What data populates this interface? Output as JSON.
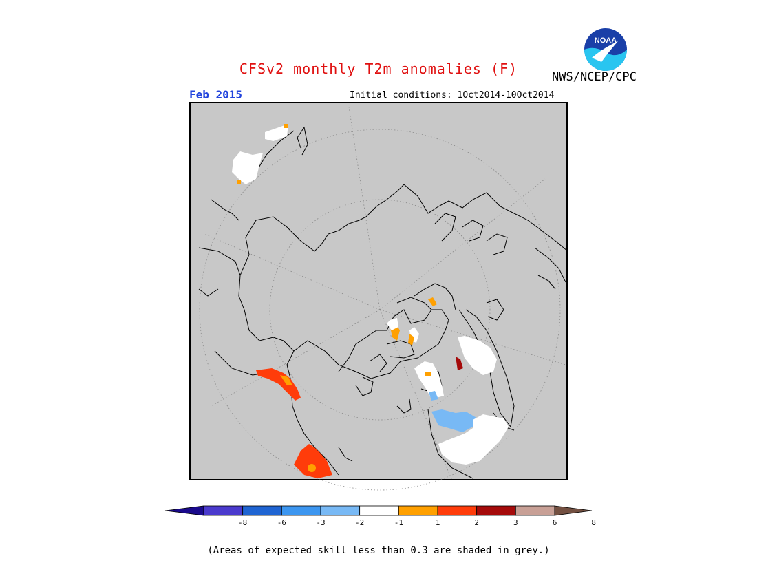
{
  "title": "CFSv2 monthly T2m anomalies (F)",
  "agency": "NWS/NCEP/CPC",
  "logo_text": "NOAA",
  "valid_month": "Feb 2015",
  "initial_conditions": "Initial conditions: 1Oct2014-10Oct2014",
  "footnote": "(Areas of expected skill less than 0.3 are shaded in grey.)",
  "colors": {
    "title": "#e01010",
    "month": "#2244dd",
    "background_grey": "#c8c8c8"
  },
  "legend": {
    "ticks": [
      "-8",
      "-6",
      "-3",
      "-2",
      "-1",
      "1",
      "2",
      "3",
      "6",
      "8"
    ],
    "bins": [
      {
        "label": "< -8",
        "color": "#1a0a8c"
      },
      {
        "label": "-8 to -6",
        "color": "#4a3acd"
      },
      {
        "label": "-6 to -3",
        "color": "#1f64d2"
      },
      {
        "label": "-3 to -2",
        "color": "#3c96f0"
      },
      {
        "label": "-2 to -1",
        "color": "#78b9f5"
      },
      {
        "label": "-1 to 1",
        "color": "#ffffff"
      },
      {
        "label": "1 to 2",
        "color": "#ffa000"
      },
      {
        "label": "2 to 3",
        "color": "#ff3c0a"
      },
      {
        "label": "3 to 6",
        "color": "#a50a0a"
      },
      {
        "label": "6 to 8",
        "color": "#c8a096"
      },
      {
        "label": "> 8",
        "color": "#735041"
      }
    ]
  }
}
